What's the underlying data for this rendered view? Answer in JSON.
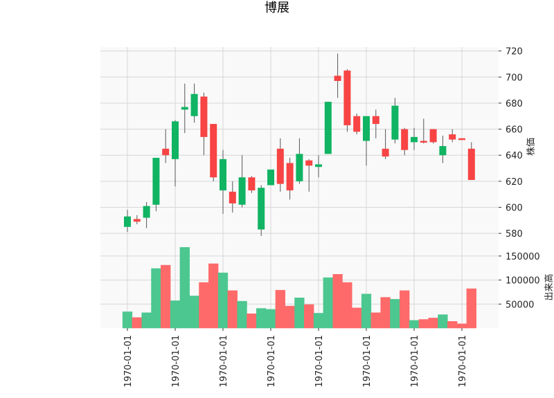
{
  "chart_data": {
    "type": "candlestick",
    "title": "博展",
    "ylabel": "株価",
    "volume_ylabel": "出来高",
    "x_tick_labels": [
      "1970-01-01",
      "1970-01-01",
      "1970-01-01",
      "1970-01-01",
      "1970-01-01",
      "1970-01-01",
      "1970-01-01",
      "1970-01-01"
    ],
    "x_tick_indices": [
      0,
      5,
      10,
      15,
      20,
      25,
      30,
      35
    ],
    "price_ticks": [
      580,
      600,
      620,
      640,
      660,
      680,
      700,
      720
    ],
    "volume_ticks": [
      50000,
      100000,
      150000
    ],
    "ylim": [
      570,
      723
    ],
    "volume_ylim": [
      0,
      170000
    ],
    "colors": {
      "up": "#10b463",
      "down": "#f84444",
      "up_volume": "#4cc790",
      "down_volume": "#fe6a6a"
    },
    "candles": [
      {
        "open": 585,
        "high": 598,
        "low": 581,
        "close": 593,
        "volume": 34000
      },
      {
        "open": 591,
        "high": 594,
        "low": 587,
        "close": 589,
        "volume": 22000
      },
      {
        "open": 592,
        "high": 604,
        "low": 584,
        "close": 601,
        "volume": 32000
      },
      {
        "open": 602,
        "high": 638,
        "low": 597,
        "close": 638,
        "volume": 124000
      },
      {
        "open": 645,
        "high": 660,
        "low": 634,
        "close": 640,
        "volume": 131000
      },
      {
        "open": 637,
        "high": 667,
        "low": 616,
        "close": 666,
        "volume": 57000
      },
      {
        "open": 675,
        "high": 695,
        "low": 657,
        "close": 677,
        "volume": 168000
      },
      {
        "open": 670,
        "high": 695,
        "low": 665,
        "close": 687,
        "volume": 67000
      },
      {
        "open": 685,
        "high": 688,
        "low": 640,
        "close": 654,
        "volume": 95000
      },
      {
        "open": 664,
        "high": 664,
        "low": 620,
        "close": 623,
        "volume": 134000
      },
      {
        "open": 613,
        "high": 644,
        "low": 595,
        "close": 637,
        "volume": 115000
      },
      {
        "open": 612,
        "high": 620,
        "low": 596,
        "close": 603,
        "volume": 78000
      },
      {
        "open": 602,
        "high": 640,
        "low": 600,
        "close": 623,
        "volume": 56000
      },
      {
        "open": 623,
        "high": 624,
        "low": 611,
        "close": 613,
        "volume": 30000
      },
      {
        "open": 583,
        "high": 617,
        "low": 578,
        "close": 615,
        "volume": 41000
      },
      {
        "open": 617,
        "high": 629,
        "low": 617,
        "close": 629,
        "volume": 39000
      },
      {
        "open": 645,
        "high": 653,
        "low": 612,
        "close": 618,
        "volume": 79000
      },
      {
        "open": 634,
        "high": 638,
        "low": 606,
        "close": 613,
        "volume": 46000
      },
      {
        "open": 620,
        "high": 653,
        "low": 618,
        "close": 641,
        "volume": 63000
      },
      {
        "open": 636,
        "high": 637,
        "low": 612,
        "close": 632,
        "volume": 49000
      },
      {
        "open": 631,
        "high": 640,
        "low": 623,
        "close": 633,
        "volume": 31000
      },
      {
        "open": 641,
        "high": 681,
        "low": 641,
        "close": 681,
        "volume": 105000
      },
      {
        "open": 701,
        "high": 718,
        "low": 684,
        "close": 697,
        "volume": 112000
      },
      {
        "open": 705,
        "high": 706,
        "low": 658,
        "close": 663,
        "volume": 95000
      },
      {
        "open": 670,
        "high": 672,
        "low": 656,
        "close": 658,
        "volume": 42000
      },
      {
        "open": 651,
        "high": 670,
        "low": 632,
        "close": 670,
        "volume": 71000
      },
      {
        "open": 670,
        "high": 675,
        "low": 653,
        "close": 664,
        "volume": 32000
      },
      {
        "open": 645,
        "high": 660,
        "low": 637,
        "close": 639,
        "volume": 64000
      },
      {
        "open": 652,
        "high": 684,
        "low": 649,
        "close": 678,
        "volume": 60000
      },
      {
        "open": 660,
        "high": 661,
        "low": 640,
        "close": 644,
        "volume": 78000
      },
      {
        "open": 650,
        "high": 661,
        "low": 644,
        "close": 654,
        "volume": 16000
      },
      {
        "open": 651,
        "high": 668,
        "low": 649,
        "close": 650,
        "volume": 18000
      },
      {
        "open": 660,
        "high": 660,
        "low": 649,
        "close": 650,
        "volume": 21000
      },
      {
        "open": 640,
        "high": 655,
        "low": 634,
        "close": 647,
        "volume": 28000
      },
      {
        "open": 656,
        "high": 660,
        "low": 650,
        "close": 652,
        "volume": 14000
      },
      {
        "open": 653,
        "high": 653,
        "low": 652,
        "close": 652,
        "volume": 9000
      },
      {
        "open": 645,
        "high": 650,
        "low": 621,
        "close": 621,
        "volume": 82000
      }
    ]
  }
}
